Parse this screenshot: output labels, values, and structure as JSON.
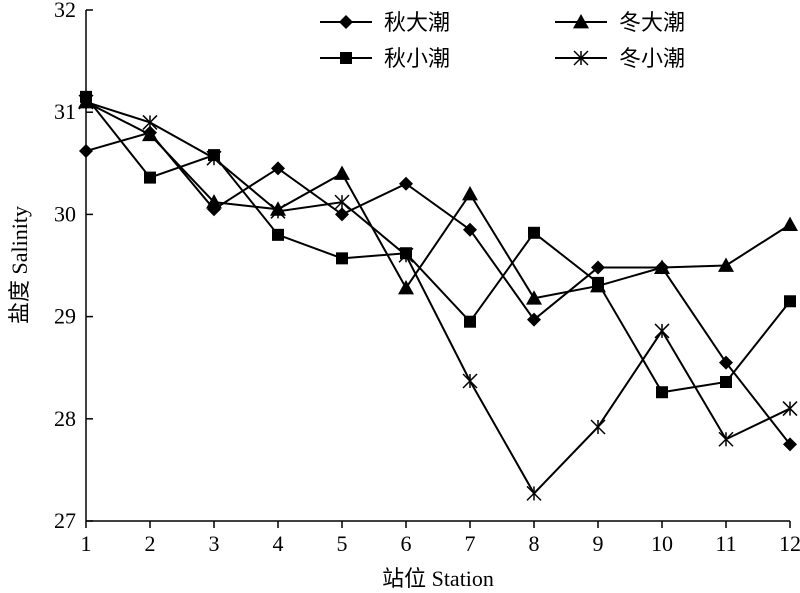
{
  "chart_data": {
    "type": "line",
    "xlabel": "站位 Station",
    "ylabel": "盐度 Salinity",
    "x": [
      1,
      2,
      3,
      4,
      5,
      6,
      7,
      8,
      9,
      10,
      11,
      12
    ],
    "xlim": [
      1,
      12
    ],
    "ylim": [
      27,
      32
    ],
    "yticks": [
      27,
      28,
      29,
      30,
      31,
      32
    ],
    "grid": false,
    "legend_position": "top-right",
    "series": [
      {
        "name": "秋大潮",
        "marker": "diamond",
        "values": [
          30.62,
          30.8,
          30.05,
          30.45,
          30.0,
          30.3,
          29.85,
          28.97,
          29.48,
          29.48,
          28.55,
          27.75
        ]
      },
      {
        "name": "冬大潮",
        "marker": "triangle",
        "values": [
          31.1,
          30.78,
          30.12,
          30.05,
          30.4,
          29.28,
          30.2,
          29.18,
          29.3,
          29.48,
          29.5,
          29.9
        ]
      },
      {
        "name": "秋小潮",
        "marker": "square",
        "values": [
          31.15,
          30.36,
          30.58,
          29.8,
          29.57,
          29.62,
          28.95,
          29.82,
          29.33,
          28.26,
          28.36,
          29.15
        ]
      },
      {
        "name": "冬小潮",
        "marker": "asterisk",
        "values": [
          31.1,
          30.9,
          30.55,
          30.03,
          30.12,
          29.6,
          28.37,
          27.27,
          27.92,
          28.86,
          27.8,
          28.1
        ]
      }
    ]
  }
}
